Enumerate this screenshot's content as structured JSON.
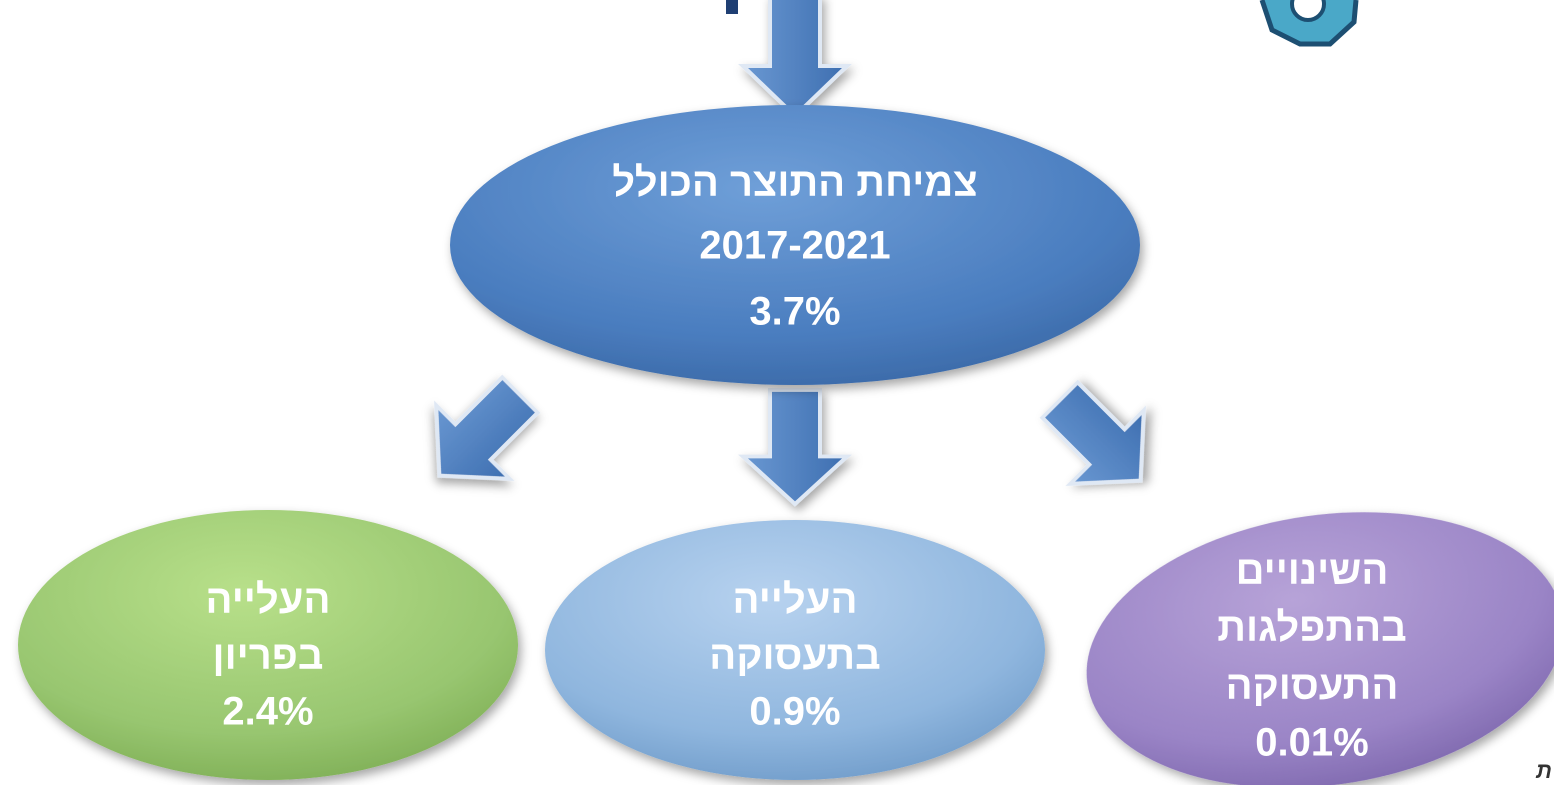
{
  "nodes": [
    {
      "lines": [
        "צמיחת התוצר הכולל",
        "2017-2021",
        "3.7%"
      ]
    },
    {
      "lines": [
        "העלייה",
        "בפריון",
        "2.4%"
      ]
    },
    {
      "lines": [
        "העלייה",
        "בתעסוקה",
        "0.9%"
      ]
    },
    {
      "lines": [
        "השינויים",
        "בהתפלגות",
        "התעסוקה",
        "0.01%"
      ]
    }
  ],
  "corner_text": "ת"
}
